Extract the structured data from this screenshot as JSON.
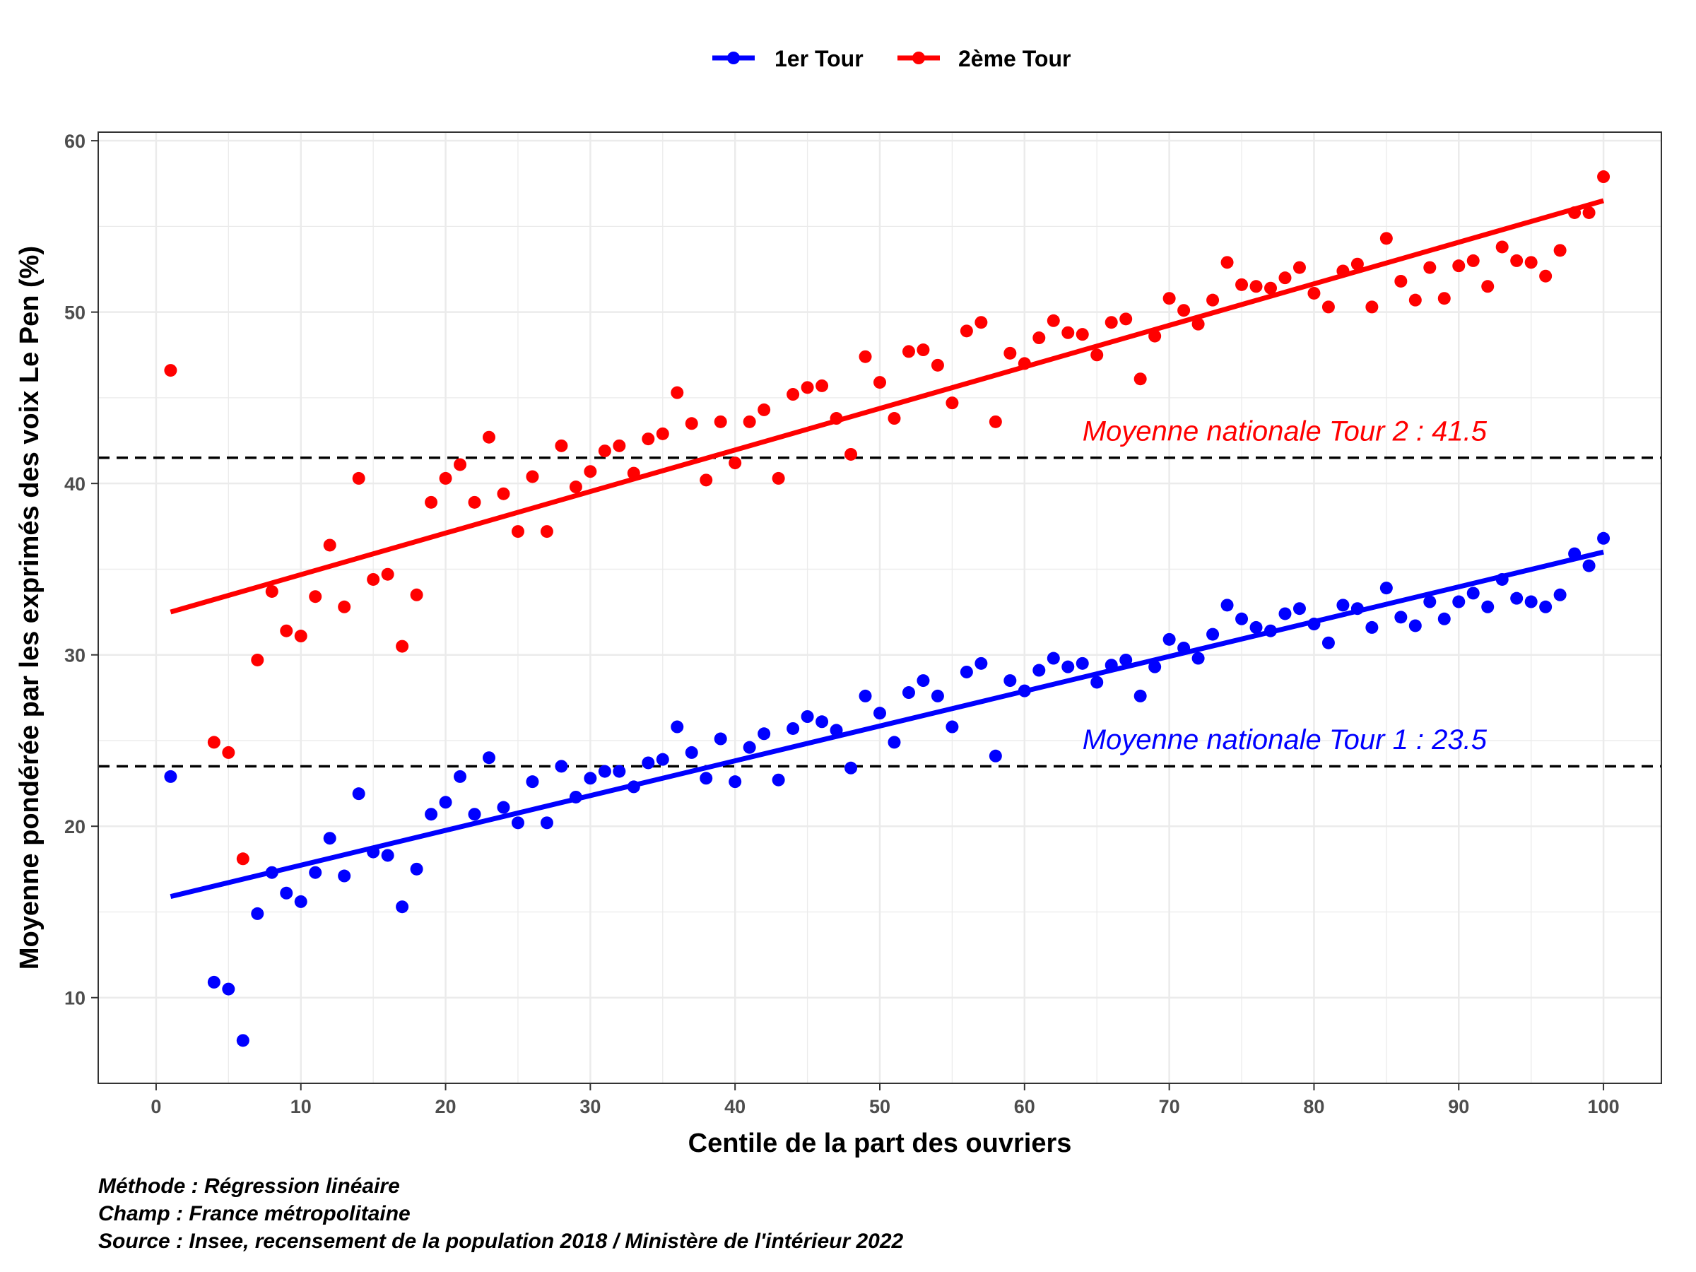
{
  "chart_data": {
    "type": "scatter",
    "title": "",
    "xlabel": "Centile de la part des ouvriers",
    "ylabel": "Moyenne pondérée par les exprimés des voix Le Pen (%)",
    "xlim": [
      -4,
      104
    ],
    "ylim": [
      5,
      60.5
    ],
    "x_ticks": [
      0,
      10,
      20,
      30,
      40,
      50,
      60,
      70,
      80,
      90,
      100
    ],
    "y_ticks": [
      10,
      20,
      30,
      40,
      50,
      60
    ],
    "grid": true,
    "legend_position": "top",
    "series": [
      {
        "name": "1er Tour",
        "color": "#0000ff",
        "x": [
          1,
          4,
          5,
          6,
          7,
          8,
          9,
          10,
          11,
          12,
          13,
          14,
          15,
          16,
          17,
          18,
          19,
          20,
          21,
          22,
          23,
          24,
          25,
          26,
          27,
          28,
          29,
          30,
          31,
          32,
          33,
          34,
          35,
          36,
          37,
          38,
          39,
          40,
          41,
          42,
          43,
          44,
          45,
          46,
          47,
          48,
          49,
          50,
          51,
          52,
          53,
          54,
          55,
          56,
          57,
          58,
          59,
          60,
          61,
          62,
          63,
          64,
          65,
          66,
          67,
          68,
          69,
          70,
          71,
          72,
          73,
          74,
          75,
          76,
          77,
          78,
          79,
          80,
          81,
          82,
          83,
          84,
          85,
          86,
          87,
          88,
          89,
          90,
          91,
          92,
          93,
          94,
          95,
          96,
          97,
          98,
          99,
          100
        ],
        "y": [
          22.9,
          10.9,
          10.5,
          7.5,
          14.9,
          17.3,
          16.1,
          15.6,
          17.3,
          19.3,
          17.1,
          21.9,
          18.5,
          18.3,
          15.3,
          17.5,
          20.7,
          21.4,
          22.9,
          20.7,
          24.0,
          21.1,
          20.2,
          22.6,
          20.2,
          23.5,
          21.7,
          22.8,
          23.2,
          23.2,
          22.3,
          23.7,
          23.9,
          25.8,
          24.3,
          22.8,
          25.1,
          22.6,
          24.6,
          25.4,
          22.7,
          25.7,
          26.4,
          26.1,
          25.6,
          23.4,
          27.6,
          26.6,
          24.9,
          27.8,
          28.5,
          27.6,
          25.8,
          29.0,
          29.5,
          24.1,
          28.5,
          27.9,
          29.1,
          29.8,
          29.3,
          29.5,
          28.4,
          29.4,
          29.7,
          27.6,
          29.3,
          30.9,
          30.4,
          29.8,
          31.2,
          32.9,
          32.1,
          31.6,
          31.4,
          32.4,
          32.7,
          31.8,
          30.7,
          32.9,
          32.7,
          31.6,
          33.9,
          32.2,
          31.7,
          33.1,
          32.1,
          33.1,
          33.6,
          32.8,
          34.4,
          33.3,
          33.1,
          32.8,
          33.5,
          35.9,
          35.2,
          36.8
        ]
      },
      {
        "name": "2ème Tour",
        "color": "#ff0000",
        "x": [
          1,
          4,
          5,
          6,
          7,
          8,
          9,
          10,
          11,
          12,
          13,
          14,
          15,
          16,
          17,
          18,
          19,
          20,
          21,
          22,
          23,
          24,
          25,
          26,
          27,
          28,
          29,
          30,
          31,
          32,
          33,
          34,
          35,
          36,
          37,
          38,
          39,
          40,
          41,
          42,
          43,
          44,
          45,
          46,
          47,
          48,
          49,
          50,
          51,
          52,
          53,
          54,
          55,
          56,
          57,
          58,
          59,
          60,
          61,
          62,
          63,
          64,
          65,
          66,
          67,
          68,
          69,
          70,
          71,
          72,
          73,
          74,
          75,
          76,
          77,
          78,
          79,
          80,
          81,
          82,
          83,
          84,
          85,
          86,
          87,
          88,
          89,
          90,
          91,
          92,
          93,
          94,
          95,
          96,
          97,
          98,
          99,
          100
        ],
        "y": [
          46.6,
          24.9,
          24.3,
          18.1,
          29.7,
          33.7,
          31.4,
          31.1,
          33.4,
          36.4,
          32.8,
          40.3,
          34.4,
          34.7,
          30.5,
          33.5,
          38.9,
          40.3,
          41.1,
          38.9,
          42.7,
          39.4,
          37.2,
          40.4,
          37.2,
          42.2,
          39.8,
          40.7,
          41.9,
          42.2,
          40.6,
          42.6,
          42.9,
          45.3,
          43.5,
          40.2,
          43.6,
          41.2,
          43.6,
          44.3,
          40.3,
          45.2,
          45.6,
          45.7,
          43.8,
          41.7,
          47.4,
          45.9,
          43.8,
          47.7,
          47.8,
          46.9,
          44.7,
          48.9,
          49.4,
          43.6,
          47.6,
          47.0,
          48.5,
          49.5,
          48.8,
          48.7,
          47.5,
          49.4,
          49.6,
          46.1,
          48.6,
          50.8,
          50.1,
          49.3,
          50.7,
          52.9,
          51.6,
          51.5,
          51.4,
          52.0,
          52.6,
          51.1,
          50.3,
          52.4,
          52.8,
          50.3,
          54.3,
          51.8,
          50.7,
          52.6,
          50.8,
          52.7,
          53.0,
          51.5,
          53.8,
          53.0,
          52.9,
          52.1,
          53.6,
          55.8,
          55.8,
          57.9
        ]
      }
    ],
    "regression_lines": [
      {
        "series": "1er Tour",
        "color": "#0000ff",
        "x": [
          1,
          100
        ],
        "y": [
          15.9,
          36.0
        ]
      },
      {
        "series": "2ème Tour",
        "color": "#ff0000",
        "x": [
          1,
          100
        ],
        "y": [
          32.5,
          56.5
        ]
      }
    ],
    "reference_lines": [
      {
        "y": 41.5,
        "style": "dashed",
        "color": "#000000"
      },
      {
        "y": 23.5,
        "style": "dashed",
        "color": "#000000"
      }
    ],
    "annotations": [
      {
        "text": "Moyenne nationale Tour 2 : 41.5",
        "x": 64,
        "y": 42.5,
        "color": "#ff0000"
      },
      {
        "text": "Moyenne nationale Tour 1 : 23.5",
        "x": 64,
        "y": 24.5,
        "color": "#0000ff"
      }
    ],
    "caption": [
      "Méthode : Régression linéaire",
      "Champ : France métropolitaine",
      "Source : Insee, recensement de la population 2018 / Ministère de l'intérieur 2022"
    ]
  }
}
